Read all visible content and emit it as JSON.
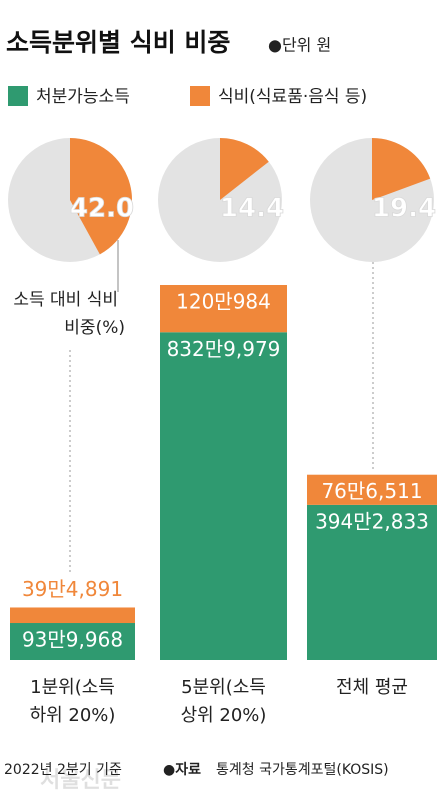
{
  "chart_data": {
    "type": "bar",
    "title": "소득분위별 식비 비중",
    "unit_note": "●단위 원",
    "categories": [
      [
        "1분위(소득",
        "하위 20%)"
      ],
      [
        "5분위(소득",
        "상위 20%)"
      ],
      [
        "전체 평균"
      ]
    ],
    "stacked": true,
    "series": [
      {
        "name": "처분가능소득",
        "color": "#2f9a70",
        "values": [
          939968,
          8329979,
          3942833
        ],
        "value_labels": [
          "93만9,968",
          "832만9,979",
          "394만2,833"
        ]
      },
      {
        "name": "식비(식료품·음식 등)",
        "color": "#f0873a",
        "values": [
          394891,
          1200984,
          766511
        ],
        "value_labels": [
          "39만4,891",
          "120만984",
          "76만6,511"
        ]
      }
    ],
    "pie": {
      "type": "pie",
      "values": [
        42.0,
        14.4,
        19.4
      ],
      "value_labels": [
        "42.0",
        "14.4",
        "19.4"
      ],
      "color": "#f0873a",
      "rest_color": "#e3e3e3"
    },
    "annotation": [
      "소득 대비 식비",
      "비중(%)"
    ],
    "footnote": "2022년 2분기 기준",
    "source_label": "●자료",
    "source": "통계청 국가통계포털(KOSIS)",
    "watermark": "서울신문"
  }
}
